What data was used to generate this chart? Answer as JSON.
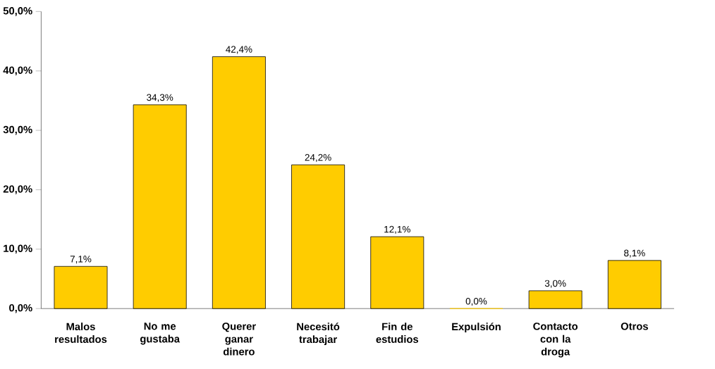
{
  "chart_data": {
    "type": "bar",
    "categories": [
      "Malos resultados",
      "No me gustaba",
      "Querer ganar dinero",
      "Necesitó trabajar",
      "Fin de estudios",
      "Expulsión",
      "Contacto con la droga",
      "Otros"
    ],
    "values": [
      7.1,
      34.3,
      42.4,
      24.2,
      12.1,
      0.0,
      3.0,
      8.1
    ],
    "value_labels": [
      "7,1%",
      "34,3%",
      "42,4%",
      "24,2%",
      "12,1%",
      "0,0%",
      "3,0%",
      "8,1%"
    ],
    "color": "#ffcc00",
    "ylim": [
      0,
      50
    ],
    "yticks": [
      {
        "value": 0,
        "label": "0,0%"
      },
      {
        "value": 10,
        "label": "10,0%"
      },
      {
        "value": 20,
        "label": "20,0%"
      },
      {
        "value": 30,
        "label": "30,0%"
      },
      {
        "value": 40,
        "label": "40,0%"
      },
      {
        "value": 50,
        "label": "50,0%"
      }
    ],
    "grid": false
  }
}
